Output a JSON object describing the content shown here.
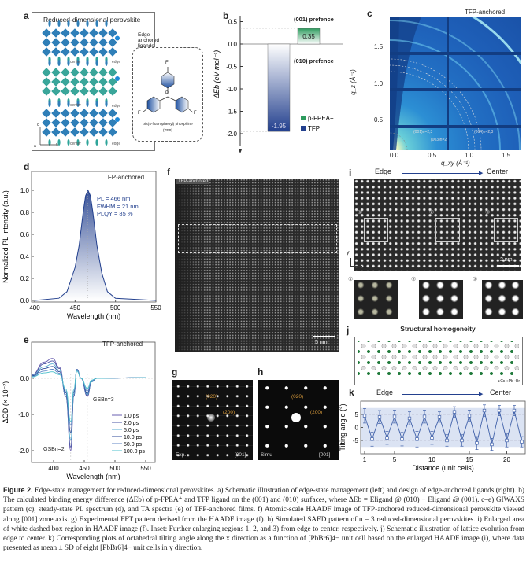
{
  "panels": {
    "a": {
      "label": "a",
      "title": "Reduced-dimensional perovskite",
      "inset_title": "Edge-anchored ligands",
      "center_label": "center",
      "edge_label": "edge",
      "molecule_atoms": {
        "p": "P",
        "f": "F"
      },
      "molecule_name": "tris(4-fluorophenyl) phosphine",
      "molecule_abbr": "(TFP)",
      "axes": {
        "c": "c",
        "a": "a",
        "b": "b"
      }
    },
    "b": {
      "label": "b",
      "top_note": "(001) prefence",
      "bottom_note": "(010) prefence"
    },
    "c": {
      "label": "c",
      "tag": "TFP-anchored",
      "xlabel": "q_xy (Å⁻¹)",
      "ylabel": "q_z (Å⁻¹)",
      "xticks": [
        "0.0",
        "0.5",
        "1.0",
        "1.5"
      ],
      "yticks": [
        "0.5",
        "1.0",
        "1.5"
      ],
      "annotations": [
        "(001)n=2,3",
        "(003)n=2",
        "(004)n=2,3"
      ]
    },
    "d": {
      "label": "d",
      "tag": "TFP-anchored",
      "info": [
        "PL = 466 nm",
        "FWHM = 21 nm",
        "PLQY = 85 %"
      ]
    },
    "e": {
      "label": "e",
      "tag": "TFP-anchored",
      "gsb2": "GSBn=2",
      "gsb3": "GSBn=3"
    },
    "f": {
      "label": "f",
      "tag": "TFP-anchored",
      "scale": "5 nm"
    },
    "g": {
      "label": "g",
      "spots": [
        "(020)",
        "(200)"
      ],
      "left": "Exp.",
      "right": "[001]"
    },
    "h": {
      "label": "h",
      "spots": [
        "(020)",
        "(200)"
      ],
      "left": "Simu",
      "right": "[001]"
    },
    "i": {
      "label": "i",
      "edge": "Edge",
      "center": "Center",
      "scale": "2 nm",
      "regions": [
        "①",
        "②",
        "③"
      ],
      "axes": {
        "y": "y",
        "x": "x"
      }
    },
    "j": {
      "label": "j",
      "title": "Structural homogeneity",
      "legend": "●Cs ○Pb ▫Br"
    },
    "k": {
      "label": "k",
      "edge": "Edge",
      "center": "Center"
    }
  },
  "caption": {
    "head": "Figure 2.",
    "text": "Edge-state management for reduced-dimensional perovskites. a) Schematic illustration of edge-state management (left) and design of edge-anchored ligands (right). b) The calculated binding energy difference (ΔEb) of p-FPEA⁺ and TFP ligand on the (001) and (010) surfaces, where ΔEb = Eligand @ (010) − Eligand @ (001). c–e) GIWAXS pattern (c), steady-state PL spectrum (d), and TA spectra (e) of TFP-anchored films. f) Atomic-scale HAADF image of TFP-anchored reduced-dimensional perovskite viewed along [001] zone axis. g) Experimental FFT pattern derived from the HAADF image (f). h) Simulated SAED pattern of n = 3 reduced-dimensional perovskites. i) Enlarged area of white dashed box region in HAADF image (f). Inset: Further enlarging regions 1, 2, and 3) from edge to center, respectively. j) Schematic illustration of lattice evolution from edge to center. k) Corresponding plots of octahedral tilting angle along the x direction as a function of [PbBr6]4− unit cell based on the enlarged HAADF image (i), where data presented as mean ± SD of eight [PbBr6]4− unit cells in y direction."
  },
  "colors": {
    "navy": "#23408e",
    "green": "#2e9b5e",
    "teal": "#3aa6a0",
    "blue": "#2a6fb5"
  },
  "chart_data": [
    {
      "id": "b",
      "type": "bar",
      "categories": [
        "TFP",
        "p-FPEA+"
      ],
      "values": [
        -1.95,
        0.35
      ],
      "value_labels": [
        "-1.95",
        "0.35"
      ],
      "legend": [
        "p-FPEA+",
        "TFP"
      ],
      "legend_placement": "bottom-right",
      "ylabel": "ΔEb (eV mol⁻¹)",
      "ylim": [
        -2.3,
        0.6
      ],
      "yticks": [
        "0.5",
        "0.0",
        "-0.5",
        "-1.0",
        "-1.5",
        "-2.0"
      ],
      "colors": [
        "#23408e",
        "#2e9b5e"
      ]
    },
    {
      "id": "d",
      "type": "area",
      "xlabel": "Wavelength (nm)",
      "ylabel": "Normalized PL intensity (a.u.)",
      "xlim": [
        400,
        550
      ],
      "ylim": [
        0,
        1.1
      ],
      "xticks": [
        "400",
        "450",
        "500",
        "550"
      ],
      "yticks": [
        "0.0",
        "0.2",
        "0.4",
        "0.6",
        "0.8",
        "1.0"
      ],
      "x": [
        400,
        430,
        440,
        450,
        455,
        460,
        463,
        466,
        469,
        472,
        477,
        483,
        490,
        500,
        550
      ],
      "y": [
        0,
        0.02,
        0.08,
        0.3,
        0.5,
        0.8,
        0.95,
        1.0,
        0.95,
        0.8,
        0.5,
        0.25,
        0.08,
        0.02,
        0
      ]
    },
    {
      "id": "e",
      "type": "line",
      "xlabel": "Wavelength (nm)",
      "ylabel": "ΔOD (× 10⁻²)",
      "xlim": [
        365,
        550
      ],
      "ylim": [
        -2.3,
        0.9
      ],
      "xticks": [
        "400",
        "450",
        "500",
        "550"
      ],
      "yticks": [
        "0.0",
        "-1.0",
        "-2.0"
      ],
      "legend_placement": "bottom-right",
      "x": [
        365,
        385,
        398,
        410,
        420,
        428,
        433,
        438,
        445,
        455,
        462,
        470,
        550
      ],
      "series": [
        {
          "name": "1.0 ps",
          "color": "#6a5fb0",
          "values": [
            0.1,
            0.45,
            0.55,
            0.3,
            -0.5,
            -2.0,
            -0.5,
            0.25,
            0.0,
            -0.5,
            -0.1,
            0,
            0.02
          ]
        },
        {
          "name": "2.0 ps",
          "color": "#4a55a5",
          "values": [
            0.1,
            0.4,
            0.48,
            0.27,
            -0.5,
            -1.9,
            -0.5,
            0.25,
            0.0,
            -0.48,
            -0.1,
            0,
            0.02
          ]
        },
        {
          "name": "5.0 ps",
          "color": "#5aaed0",
          "values": [
            0.08,
            0.32,
            0.4,
            0.22,
            -0.45,
            -1.7,
            -0.45,
            0.24,
            0.0,
            -0.45,
            -0.1,
            0,
            0.02
          ]
        },
        {
          "name": "10.0 ps",
          "color": "#2c4a9a",
          "values": [
            0.07,
            0.27,
            0.33,
            0.18,
            -0.4,
            -1.5,
            -0.4,
            0.23,
            0.0,
            -0.42,
            -0.08,
            0,
            0.02
          ]
        },
        {
          "name": "50.0 ps",
          "color": "#5f86c6",
          "values": [
            0.05,
            0.2,
            0.25,
            0.14,
            -0.35,
            -1.3,
            -0.35,
            0.22,
            0.0,
            -0.35,
            -0.07,
            0,
            0.02
          ]
        },
        {
          "name": "100.0 ps",
          "color": "#4cc0cc",
          "values": [
            0.04,
            0.15,
            0.18,
            0.1,
            -0.3,
            -1.2,
            -0.3,
            0.2,
            0.0,
            -0.28,
            -0.05,
            0,
            0.02
          ]
        }
      ]
    },
    {
      "id": "k",
      "type": "line",
      "xlabel": "Distance (unit cells)",
      "ylabel": "Tilting angle (°)",
      "xlim": [
        0,
        23
      ],
      "ylim": [
        -10,
        10
      ],
      "xticks": [
        "1",
        "5",
        "10",
        "15",
        "20"
      ],
      "yticks": [
        "5",
        "0",
        "-5"
      ],
      "band": [
        -7.5,
        7.5
      ],
      "x": [
        1,
        2,
        3,
        4,
        5,
        6,
        7,
        8,
        9,
        10,
        11,
        12,
        13,
        14,
        15,
        16,
        17,
        18,
        19,
        20,
        21,
        22
      ],
      "y": [
        4.5,
        -4.5,
        4,
        -4,
        4.2,
        -4.5,
        3.5,
        -4.5,
        4.2,
        -4,
        4,
        -5,
        6,
        -5,
        4.5,
        -6,
        6.5,
        -6.5,
        6.5,
        -5,
        6.5,
        -5.5
      ],
      "err": [
        2.8,
        2.7,
        2.5,
        2.5,
        2.5,
        2.6,
        2.5,
        3,
        2.5,
        2.5,
        2,
        2.2,
        2,
        2.2,
        2.2,
        2.5,
        2.2,
        2.3,
        2,
        2.5,
        2,
        2
      ]
    }
  ]
}
